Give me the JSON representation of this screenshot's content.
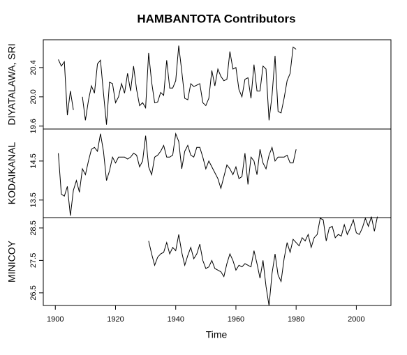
{
  "chart_data": {
    "type": "line",
    "title": "HAMBANTOTA  Contributors",
    "xlabel": "Time",
    "x": [
      1901,
      1902,
      1903,
      1904,
      1905,
      1906,
      1907,
      1908,
      1909,
      1910,
      1911,
      1912,
      1913,
      1914,
      1915,
      1916,
      1917,
      1918,
      1919,
      1920,
      1921,
      1922,
      1923,
      1924,
      1925,
      1926,
      1927,
      1928,
      1929,
      1930,
      1931,
      1932,
      1933,
      1934,
      1935,
      1936,
      1937,
      1938,
      1939,
      1940,
      1941,
      1942,
      1943,
      1944,
      1945,
      1946,
      1947,
      1948,
      1949,
      1950,
      1951,
      1952,
      1953,
      1954,
      1955,
      1956,
      1957,
      1958,
      1959,
      1960,
      1961,
      1962,
      1963,
      1964,
      1965,
      1966,
      1967,
      1968,
      1969,
      1970,
      1971,
      1972,
      1973,
      1974,
      1975,
      1976,
      1977,
      1978,
      1979,
      1980,
      1981,
      1982,
      1983,
      1984,
      1985,
      1986,
      1987,
      1988,
      1989,
      1990,
      1991,
      1992,
      1993,
      1994,
      1995,
      1996,
      1997,
      1998,
      1999,
      2000,
      2001,
      2002,
      2003,
      2004,
      2005,
      2006,
      2007
    ],
    "xlim": [
      1896,
      2011.5
    ],
    "xticks": [
      1900,
      1920,
      1940,
      1960,
      1980,
      2000
    ],
    "series": [
      {
        "name": "DIYATALAWA, SRI",
        "color": "#000000",
        "ylim": [
          19.56,
          20.78
        ],
        "yticks": [
          {
            "value": 19.6,
            "label": "19.6"
          },
          {
            "value": 20,
            "label": "20.0"
          },
          20.4
        ],
        "values": [
          20.51,
          20.42,
          20.48,
          19.75,
          20.08,
          19.82,
          null,
          null,
          20.0,
          19.68,
          19.95,
          20.15,
          20.05,
          20.45,
          20.5,
          20.05,
          19.62,
          20.2,
          20.18,
          19.92,
          20.0,
          20.18,
          20.05,
          20.32,
          20.08,
          20.42,
          20.1,
          19.88,
          19.92,
          19.85,
          20.6,
          20.2,
          19.92,
          19.93,
          20.06,
          20.02,
          20.5,
          20.12,
          20.12,
          20.22,
          20.7,
          20.35,
          19.98,
          19.96,
          20.18,
          20.14,
          20.16,
          20.18,
          19.92,
          19.88,
          19.98,
          20.36,
          20.15,
          20.38,
          20.28,
          20.22,
          20.24,
          20.62,
          20.38,
          20.4,
          20.1,
          20.0,
          20.24,
          20.26,
          19.98,
          20.44,
          20.08,
          20.08,
          20.42,
          20.38,
          19.68,
          20.02,
          20.56,
          19.8,
          19.78,
          19.98,
          20.22,
          20.32,
          20.68,
          20.65,
          null,
          null,
          null,
          null,
          null,
          null,
          null,
          null,
          null,
          null,
          null,
          null,
          null,
          null,
          null,
          null,
          null,
          null,
          null,
          null,
          null,
          null,
          null,
          null,
          null,
          null,
          null
        ]
      },
      {
        "name": "KODAIKANAL",
        "color": "#000000",
        "ylim": [
          13.05,
          15.32
        ],
        "yticks": [
          13.5,
          14.5
        ],
        "values": [
          14.7,
          13.65,
          13.6,
          13.85,
          13.1,
          13.75,
          14.0,
          13.7,
          14.3,
          14.15,
          14.5,
          14.8,
          14.85,
          14.75,
          15.2,
          14.75,
          14.0,
          14.25,
          14.6,
          14.45,
          14.6,
          14.6,
          14.6,
          14.55,
          14.6,
          14.7,
          14.65,
          14.35,
          14.5,
          15.15,
          14.35,
          14.15,
          14.6,
          14.65,
          14.75,
          14.9,
          14.6,
          14.6,
          14.65,
          15.2,
          15.0,
          14.3,
          14.75,
          14.9,
          14.65,
          14.6,
          14.85,
          14.85,
          14.6,
          14.3,
          14.5,
          14.35,
          14.2,
          14.05,
          13.8,
          14.1,
          14.4,
          14.3,
          14.15,
          14.35,
          14.05,
          14.1,
          14.7,
          13.9,
          14.6,
          14.5,
          14.15,
          14.8,
          14.45,
          14.3,
          14.65,
          14.85,
          14.5,
          14.6,
          14.6,
          14.6,
          14.65,
          14.45,
          14.45,
          14.8,
          null,
          null,
          null,
          null,
          null,
          null,
          null,
          null,
          null,
          null,
          null,
          null,
          null,
          null,
          null,
          null,
          null,
          null,
          null,
          null,
          null,
          null,
          null,
          null,
          null,
          null,
          null
        ]
      },
      {
        "name": "MINICOY",
        "color": "#000000",
        "ylim": [
          26.11,
          28.82
        ],
        "yticks": [
          26.5,
          27.5,
          28.5
        ],
        "values": [
          null,
          null,
          null,
          null,
          null,
          null,
          null,
          null,
          null,
          null,
          null,
          null,
          null,
          null,
          null,
          null,
          null,
          null,
          null,
          null,
          null,
          null,
          null,
          null,
          null,
          null,
          null,
          null,
          null,
          null,
          28.1,
          27.7,
          27.35,
          27.6,
          27.7,
          27.75,
          28.05,
          27.7,
          27.9,
          27.8,
          28.3,
          27.75,
          27.35,
          27.65,
          27.9,
          27.55,
          27.7,
          28.0,
          27.5,
          27.25,
          27.3,
          27.5,
          27.25,
          27.2,
          27.15,
          27.0,
          27.4,
          27.7,
          27.5,
          27.2,
          27.35,
          27.3,
          27.4,
          27.35,
          27.3,
          27.8,
          27.4,
          26.95,
          27.5,
          26.7,
          26.1,
          27.1,
          27.7,
          27.05,
          26.85,
          27.55,
          28.05,
          27.75,
          28.15,
          28.05,
          27.95,
          28.2,
          28.1,
          28.3,
          27.9,
          28.2,
          28.3,
          28.8,
          28.75,
          28.1,
          28.5,
          28.55,
          28.2,
          28.3,
          28.25,
          28.6,
          28.3,
          28.5,
          28.75,
          28.35,
          28.3,
          28.5,
          28.8,
          28.55,
          28.85,
          28.4,
          28.85
        ]
      }
    ]
  }
}
